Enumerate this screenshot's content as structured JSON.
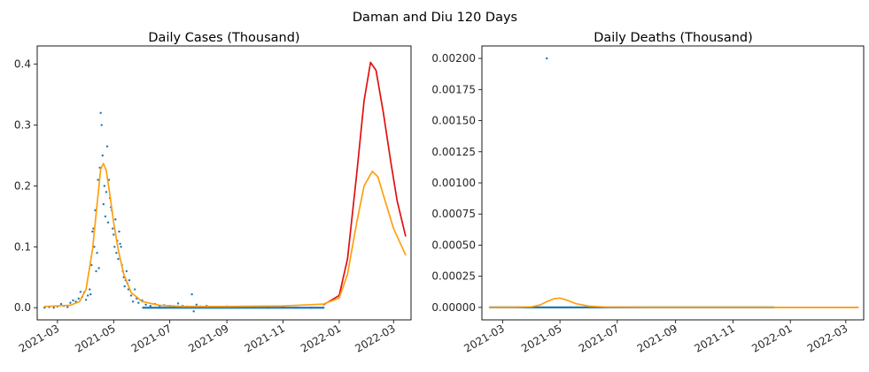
{
  "suptitle": "Daman and Diu 120 Days",
  "colors": {
    "observed": "#1f77b4",
    "model_red": "#e01010",
    "model_orange": "#ff9f10"
  },
  "chart_data": [
    {
      "type": "line",
      "title": "Daily Cases (Thousand)",
      "x_type": "date",
      "xlim": [
        "2021-02-07",
        "2022-03-20"
      ],
      "ylim": [
        -0.02,
        0.43
      ],
      "yticks": [
        0.0,
        0.1,
        0.2,
        0.3,
        0.4
      ],
      "ytick_labels": [
        "0.0",
        "0.1",
        "0.2",
        "0.3",
        "0.4"
      ],
      "xticks": [
        "2021-03-01",
        "2021-05-01",
        "2021-07-01",
        "2021-09-01",
        "2021-11-01",
        "2022-01-01",
        "2022-03-01"
      ],
      "xtick_labels": [
        "2021-03",
        "2021-05",
        "2021-07",
        "2021-09",
        "2021-11",
        "2022-01",
        "2022-03"
      ],
      "series": [
        {
          "kind": "scatter",
          "color": "#1f77b4",
          "points": [
            [
              "2021-02-15",
              0.0
            ],
            [
              "2021-02-20",
              0.001
            ],
            [
              "2021-02-25",
              0.0
            ],
            [
              "2021-03-01",
              0.002
            ],
            [
              "2021-03-05",
              0.006
            ],
            [
              "2021-03-08",
              0.003
            ],
            [
              "2021-03-12",
              0.001
            ],
            [
              "2021-03-15",
              0.008
            ],
            [
              "2021-03-18",
              0.012
            ],
            [
              "2021-03-21",
              0.01
            ],
            [
              "2021-03-24",
              0.015
            ],
            [
              "2021-03-26",
              0.026
            ],
            [
              "2021-03-28",
              0.018
            ],
            [
              "2021-03-30",
              0.025
            ],
            [
              "2021-04-01",
              0.013
            ],
            [
              "2021-04-03",
              0.02
            ],
            [
              "2021-04-05",
              0.03
            ],
            [
              "2021-04-06",
              0.022
            ],
            [
              "2021-04-07",
              0.07
            ],
            [
              "2021-04-08",
              0.125
            ],
            [
              "2021-04-09",
              0.13
            ],
            [
              "2021-04-10",
              0.1
            ],
            [
              "2021-04-11",
              0.16
            ],
            [
              "2021-04-12",
              0.06
            ],
            [
              "2021-04-13",
              0.09
            ],
            [
              "2021-04-14",
              0.21
            ],
            [
              "2021-04-15",
              0.065
            ],
            [
              "2021-04-16",
              0.23
            ],
            [
              "2021-04-17",
              0.32
            ],
            [
              "2021-04-18",
              0.3
            ],
            [
              "2021-04-19",
              0.25
            ],
            [
              "2021-04-20",
              0.17
            ],
            [
              "2021-04-21",
              0.2
            ],
            [
              "2021-04-22",
              0.15
            ],
            [
              "2021-04-23",
              0.19
            ],
            [
              "2021-04-24",
              0.265
            ],
            [
              "2021-04-25",
              0.14
            ],
            [
              "2021-04-26",
              0.21
            ],
            [
              "2021-04-27",
              0.18
            ],
            [
              "2021-04-28",
              0.165
            ],
            [
              "2021-04-29",
              0.16
            ],
            [
              "2021-04-30",
              0.13
            ],
            [
              "2021-05-01",
              0.12
            ],
            [
              "2021-05-02",
              0.1
            ],
            [
              "2021-05-03",
              0.145
            ],
            [
              "2021-05-04",
              0.09
            ],
            [
              "2021-05-05",
              0.11
            ],
            [
              "2021-05-06",
              0.08
            ],
            [
              "2021-05-07",
              0.125
            ],
            [
              "2021-05-08",
              0.105
            ],
            [
              "2021-05-09",
              0.1
            ],
            [
              "2021-05-10",
              0.07
            ],
            [
              "2021-05-11",
              0.06
            ],
            [
              "2021-05-12",
              0.05
            ],
            [
              "2021-05-13",
              0.035
            ],
            [
              "2021-05-14",
              0.045
            ],
            [
              "2021-05-15",
              0.06
            ],
            [
              "2021-05-16",
              0.04
            ],
            [
              "2021-05-17",
              0.03
            ],
            [
              "2021-05-18",
              0.045
            ],
            [
              "2021-05-20",
              0.02
            ],
            [
              "2021-05-22",
              0.01
            ],
            [
              "2021-05-24",
              0.03
            ],
            [
              "2021-05-26",
              0.015
            ],
            [
              "2021-05-28",
              0.008
            ],
            [
              "2021-06-01",
              0.012
            ],
            [
              "2021-06-05",
              0.005
            ],
            [
              "2021-06-10",
              0.003
            ],
            [
              "2021-06-15",
              0.006
            ],
            [
              "2021-06-20",
              0.002
            ],
            [
              "2021-06-25",
              0.004
            ],
            [
              "2021-07-01",
              0.003
            ],
            [
              "2021-07-05",
              0.001
            ],
            [
              "2021-07-10",
              0.007
            ],
            [
              "2021-07-15",
              0.003
            ],
            [
              "2021-07-20",
              0.002
            ],
            [
              "2021-07-25",
              0.022
            ],
            [
              "2021-07-27",
              -0.006
            ],
            [
              "2021-07-30",
              0.005
            ],
            [
              "2021-08-03",
              0.002
            ],
            [
              "2021-08-10",
              0.003
            ],
            [
              "2021-08-20",
              0.001
            ],
            [
              "2021-09-01",
              0.002
            ],
            [
              "2021-09-15",
              0.001
            ],
            [
              "2021-10-01",
              0.001
            ],
            [
              "2021-10-15",
              0.0
            ],
            [
              "2021-11-01",
              0.001
            ],
            [
              "2021-11-15",
              0.0
            ],
            [
              "2021-12-01",
              0.0
            ],
            [
              "2021-12-15",
              0.0
            ]
          ],
          "baseline_band": {
            "from": "2021-06-01",
            "to": "2021-12-15",
            "value": 0.0
          }
        },
        {
          "kind": "line",
          "color": "#e01010",
          "points": [
            [
              "2021-12-15",
              0.005
            ],
            [
              "2022-01-01",
              0.02
            ],
            [
              "2022-01-10",
              0.08
            ],
            [
              "2022-01-20",
              0.22
            ],
            [
              "2022-01-28",
              0.34
            ],
            [
              "2022-02-04",
              0.403
            ],
            [
              "2022-02-10",
              0.39
            ],
            [
              "2022-02-18",
              0.32
            ],
            [
              "2022-02-26",
              0.24
            ],
            [
              "2022-03-05",
              0.175
            ],
            [
              "2022-03-14",
              0.118
            ]
          ]
        },
        {
          "kind": "line",
          "color": "#ff9f10",
          "points": [
            [
              "2021-02-15",
              0.002
            ],
            [
              "2021-03-01",
              0.003
            ],
            [
              "2021-03-15",
              0.004
            ],
            [
              "2021-03-25",
              0.01
            ],
            [
              "2021-04-01",
              0.03
            ],
            [
              "2021-04-08",
              0.095
            ],
            [
              "2021-04-13",
              0.17
            ],
            [
              "2021-04-17",
              0.228
            ],
            [
              "2021-04-20",
              0.237
            ],
            [
              "2021-04-23",
              0.225
            ],
            [
              "2021-04-27",
              0.185
            ],
            [
              "2021-05-01",
              0.14
            ],
            [
              "2021-05-06",
              0.095
            ],
            [
              "2021-05-12",
              0.055
            ],
            [
              "2021-05-20",
              0.025
            ],
            [
              "2021-06-01",
              0.01
            ],
            [
              "2021-06-20",
              0.004
            ],
            [
              "2021-07-15",
              0.002
            ],
            [
              "2021-09-01",
              0.002
            ],
            [
              "2021-11-01",
              0.003
            ],
            [
              "2021-12-01",
              0.005
            ],
            [
              "2021-12-15",
              0.006
            ],
            [
              "2022-01-01",
              0.016
            ],
            [
              "2022-01-10",
              0.055
            ],
            [
              "2022-01-20",
              0.14
            ],
            [
              "2022-01-28",
              0.2
            ],
            [
              "2022-02-06",
              0.224
            ],
            [
              "2022-02-12",
              0.215
            ],
            [
              "2022-02-20",
              0.175
            ],
            [
              "2022-03-01",
              0.13
            ],
            [
              "2022-03-14",
              0.087
            ]
          ]
        }
      ]
    },
    {
      "type": "line",
      "title": "Daily Deaths (Thousand)",
      "x_type": "date",
      "xlim": [
        "2021-02-07",
        "2022-03-20"
      ],
      "ylim": [
        -0.0001,
        0.0021
      ],
      "yticks": [
        0,
        0.00025,
        0.0005,
        0.00075,
        0.001,
        0.00125,
        0.0015,
        0.00175,
        0.002
      ],
      "ytick_labels": [
        "0.00000",
        "0.00025",
        "0.00050",
        "0.00075",
        "0.00100",
        "0.00125",
        "0.00150",
        "0.00175",
        "0.00200"
      ],
      "xticks": [
        "2021-03-01",
        "2021-05-01",
        "2021-07-01",
        "2021-09-01",
        "2021-11-01",
        "2022-01-01",
        "2022-03-01"
      ],
      "xtick_labels": [
        "2021-03",
        "2021-05",
        "2021-07",
        "2021-09",
        "2021-11",
        "2022-01",
        "2022-03"
      ],
      "series": [
        {
          "kind": "scatter",
          "color": "#1f77b4",
          "points": [
            [
              "2021-04-17",
              0.002
            ]
          ],
          "baseline_band": {
            "from": "2021-02-15",
            "to": "2021-12-15",
            "value": 0.0
          }
        },
        {
          "kind": "line",
          "color": "#e01010",
          "points": [
            [
              "2021-12-15",
              5e-07
            ],
            [
              "2022-01-15",
              1e-06
            ],
            [
              "2022-03-14",
              5e-07
            ]
          ]
        },
        {
          "kind": "line",
          "color": "#ff9f10",
          "points": [
            [
              "2021-02-15",
              0.0
            ],
            [
              "2021-03-15",
              0.0
            ],
            [
              "2021-04-01",
              5e-06
            ],
            [
              "2021-04-10",
              2e-05
            ],
            [
              "2021-04-18",
              5e-05
            ],
            [
              "2021-04-25",
              7e-05
            ],
            [
              "2021-05-01",
              7.5e-05
            ],
            [
              "2021-05-08",
              6e-05
            ],
            [
              "2021-05-18",
              3e-05
            ],
            [
              "2021-06-01",
              1e-05
            ],
            [
              "2021-06-20",
              2e-06
            ],
            [
              "2021-08-01",
              0.0
            ],
            [
              "2022-01-01",
              0.0
            ],
            [
              "2022-03-14",
              0.0
            ]
          ]
        }
      ]
    }
  ]
}
